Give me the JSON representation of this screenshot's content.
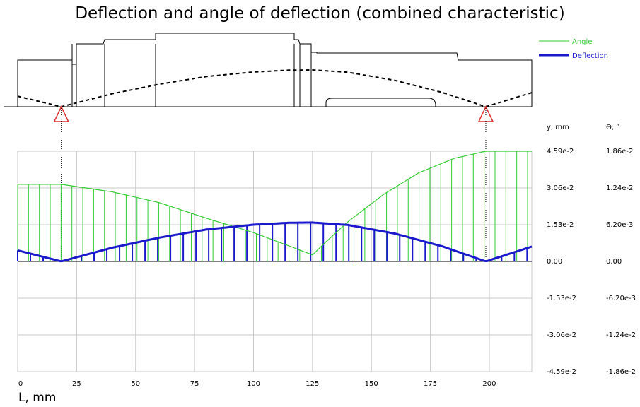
{
  "chart_data": {
    "type": "line",
    "title": "Deflection and angle of deflection (combined characteristic)",
    "xlabel": "L, mm",
    "y_left_label": "y, mm",
    "y_right_label": "Θ, °",
    "xlim": [
      0,
      218
    ],
    "ylim": [
      -0.0459,
      0.0459
    ],
    "x_ticks": [
      0,
      25,
      50,
      75,
      100,
      125,
      150,
      175,
      200
    ],
    "y_ticks_left": [
      "4.59e-2",
      "3.06e-2",
      "1.53e-2",
      "0.00",
      "-1.53e-2",
      "-3.06e-2",
      "-4.59e-2"
    ],
    "y_ticks_right": [
      "1.86e-2",
      "1.24e-2",
      "6.20e-3",
      "0.00",
      "-6.20e-3",
      "-1.24e-2",
      "-1.86e-2"
    ],
    "grid": true,
    "legend": "top-right",
    "supports_x": [
      18.5,
      198.5
    ],
    "series": [
      {
        "name": "Angle",
        "color": "#33cc33",
        "points": [
          [
            0,
            0.0321
          ],
          [
            18.5,
            0.0321
          ],
          [
            40,
            0.029
          ],
          [
            60,
            0.0245
          ],
          [
            80,
            0.018
          ],
          [
            100,
            0.012
          ],
          [
            115,
            0.0065
          ],
          [
            125,
            0.0027
          ],
          [
            130,
            0.0075
          ],
          [
            140,
            0.0165
          ],
          [
            155,
            0.0278
          ],
          [
            170,
            0.0369
          ],
          [
            185,
            0.0429
          ],
          [
            198.5,
            0.0459
          ],
          [
            218,
            0.0459
          ]
        ]
      },
      {
        "name": "Deflection",
        "color": "#1a1acc",
        "points": [
          [
            0,
            0.0046
          ],
          [
            18.5,
            0.0
          ],
          [
            40,
            0.0057
          ],
          [
            60,
            0.0099
          ],
          [
            80,
            0.0133
          ],
          [
            100,
            0.0153
          ],
          [
            115,
            0.0161
          ],
          [
            125,
            0.0162
          ],
          [
            140,
            0.0152
          ],
          [
            160,
            0.0116
          ],
          [
            180,
            0.0063
          ],
          [
            198.5,
            0.0
          ],
          [
            218,
            0.0062
          ]
        ]
      }
    ]
  }
}
